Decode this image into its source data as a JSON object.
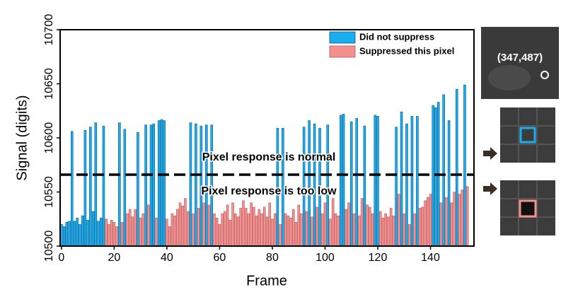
{
  "chart_data": {
    "type": "bar",
    "x_label": "Frame",
    "y_label": "Signal (digits)",
    "xlim": [
      -0.5,
      156.5
    ],
    "xticks": [
      0,
      20,
      40,
      60,
      80,
      100,
      120,
      140
    ],
    "ylim": [
      10500,
      10700
    ],
    "yticks": [
      10500,
      10550,
      10600,
      10650,
      10700
    ],
    "threshold": 10566,
    "annotations": [
      "Pixel response is normal",
      "Pixel response is too low"
    ],
    "inset_label": "(347,487)",
    "x": [
      0,
      1,
      2,
      3,
      4,
      5,
      6,
      7,
      8,
      9,
      10,
      11,
      12,
      13,
      14,
      15,
      16,
      17,
      18,
      19,
      20,
      21,
      22,
      23,
      24,
      25,
      26,
      27,
      28,
      29,
      30,
      31,
      32,
      33,
      34,
      35,
      36,
      37,
      38,
      39,
      40,
      41,
      42,
      43,
      44,
      45,
      46,
      47,
      48,
      49,
      50,
      51,
      52,
      53,
      54,
      55,
      56,
      57,
      58,
      59,
      60,
      61,
      62,
      63,
      64,
      65,
      66,
      67,
      68,
      69,
      70,
      71,
      72,
      73,
      74,
      75,
      76,
      77,
      78,
      79,
      80,
      81,
      82,
      83,
      84,
      85,
      86,
      87,
      88,
      89,
      90,
      91,
      92,
      93,
      94,
      95,
      96,
      97,
      98,
      99,
      100,
      101,
      102,
      103,
      104,
      105,
      106,
      107,
      108,
      109,
      110,
      111,
      112,
      113,
      114,
      115,
      116,
      117,
      118,
      119,
      120,
      121,
      122,
      123,
      124,
      125,
      126,
      127,
      128,
      129,
      130,
      131,
      132,
      133,
      134,
      135,
      136,
      137,
      138,
      139,
      140,
      141,
      142,
      143,
      144,
      145,
      146,
      147,
      148,
      149,
      150,
      151,
      152,
      153,
      154
    ],
    "series": [
      {
        "name": "Did not suppress",
        "color": "#1aaef0",
        "values": [
          10520,
          10518,
          10522,
          10523,
          10606,
          10523,
          10526,
          10520,
          10528,
          10607,
          10524,
          10610,
          10532,
          10614,
          10523,
          10526,
          10611,
          null,
          null,
          null,
          null,
          null,
          10614,
          null,
          10608,
          null,
          null,
          null,
          null,
          10605,
          null,
          null,
          10612,
          null,
          10612,
          10613,
          null,
          10616,
          10617,
          10616,
          null,
          null,
          null,
          null,
          null,
          null,
          null,
          null,
          null,
          10614,
          null,
          10613,
          null,
          10611,
          null,
          10612,
          null,
          10612,
          null,
          null,
          null,
          null,
          null,
          null,
          null,
          null,
          null,
          null,
          null,
          null,
          null,
          null,
          null,
          null,
          null,
          null,
          null,
          null,
          null,
          null,
          null,
          null,
          10609,
          null,
          10609,
          null,
          null,
          null,
          null,
          null,
          null,
          null,
          10610,
          null,
          10616,
          null,
          10613,
          null,
          10609,
          null,
          null,
          10612,
          null,
          null,
          null,
          null,
          10621,
          10622,
          null,
          null,
          10615,
          null,
          10618,
          null,
          null,
          10611,
          null,
          null,
          null,
          10621,
          10620,
          null,
          null,
          null,
          null,
          null,
          null,
          10610,
          null,
          10624,
          null,
          10613,
          null,
          10620,
          null,
          10620,
          null,
          null,
          null,
          null,
          null,
          10630,
          10628,
          10633,
          null,
          10640,
          null,
          10616,
          null,
          null,
          10645,
          null,
          null,
          10649,
          null
        ]
      },
      {
        "name": "Suppressed this pixel",
        "color": "#f59090",
        "values": [
          null,
          null,
          null,
          null,
          null,
          null,
          null,
          null,
          null,
          null,
          null,
          null,
          null,
          null,
          null,
          null,
          null,
          10525,
          10520,
          10524,
          10522,
          10518,
          null,
          10522,
          null,
          10530,
          10534,
          10527,
          10534,
          null,
          10526,
          10530,
          null,
          10538,
          null,
          null,
          10526,
          null,
          null,
          null,
          10525,
          10518,
          10530,
          10528,
          10534,
          10540,
          10537,
          10544,
          10532,
          null,
          10530,
          null,
          10535,
          null,
          10540,
          null,
          10538,
          null,
          10530,
          10526,
          10520,
          10530,
          10532,
          10538,
          10524,
          10540,
          10530,
          10527,
          10535,
          10542,
          10535,
          10530,
          10540,
          10536,
          10528,
          10534,
          10530,
          10536,
          10527,
          10540,
          10525,
          10530,
          null,
          10520,
          null,
          10530,
          10528,
          10526,
          10534,
          10522,
          10538,
          10530,
          null,
          10532,
          null,
          10527,
          null,
          10536,
          null,
          10530,
          10540,
          null,
          10525,
          10544,
          10530,
          10528,
          null,
          null,
          10534,
          10540,
          null,
          10530,
          null,
          10528,
          10544,
          null,
          10538,
          10536,
          10530,
          null,
          null,
          10532,
          10526,
          10530,
          10527,
          10535,
          10528,
          null,
          10548,
          null,
          10530,
          null,
          10520,
          null,
          10530,
          null,
          10535,
          10536,
          10542,
          10545,
          10548,
          null,
          null,
          null,
          10540,
          null,
          10545,
          null,
          10540,
          10550,
          null,
          10548,
          10552,
          null,
          10555
        ]
      }
    ]
  }
}
